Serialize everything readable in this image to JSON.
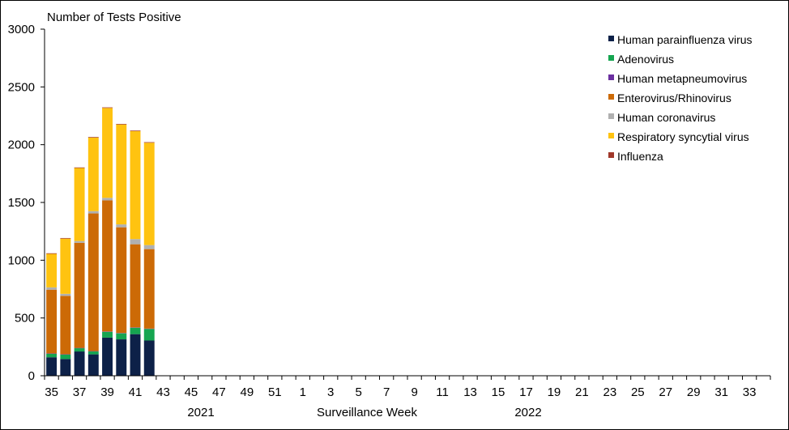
{
  "chart_data": {
    "type": "bar",
    "stacked": true,
    "ylabel": "Number of Tests Positive",
    "xlabel": "Surveillance Week",
    "ylim": [
      0,
      3000
    ],
    "yticks": [
      0,
      500,
      1000,
      1500,
      2000,
      2500,
      3000
    ],
    "grid": false,
    "legend_position": "top-right",
    "year_labels": [
      "2021",
      "2022"
    ],
    "weeks": [
      35,
      36,
      37,
      38,
      39,
      40,
      41,
      42,
      43,
      44,
      45,
      46,
      47,
      48,
      49,
      50,
      51,
      52,
      1,
      2,
      3,
      4,
      5,
      6,
      7,
      8,
      9,
      10,
      11,
      12,
      13,
      14,
      15,
      16,
      17,
      18,
      19,
      20,
      21,
      22,
      23,
      24,
      25,
      26,
      27,
      28,
      29,
      30,
      31,
      32,
      33,
      34
    ],
    "tick_labels": [
      "35",
      "37",
      "39",
      "41",
      "43",
      "45",
      "47",
      "49",
      "51",
      "1",
      "3",
      "5",
      "7",
      "9",
      "11",
      "13",
      "15",
      "17",
      "19",
      "21",
      "23",
      "25",
      "27",
      "29",
      "31",
      "33"
    ],
    "series": [
      {
        "name": "Human parainfluenza virus",
        "color": "#0d2148",
        "values": [
          160,
          145,
          210,
          185,
          330,
          315,
          360,
          305
        ]
      },
      {
        "name": "Adenovirus",
        "color": "#15a550",
        "values": [
          30,
          38,
          28,
          25,
          50,
          52,
          55,
          100
        ]
      },
      {
        "name": "Human metapneumovirus",
        "color": "#6b2fa0",
        "values": [
          3,
          3,
          3,
          3,
          3,
          3,
          3,
          3
        ]
      },
      {
        "name": "Enterovirus/Rhinovirus",
        "color": "#cc6a06",
        "values": [
          552,
          505,
          910,
          1192,
          1135,
          915,
          720,
          688
        ]
      },
      {
        "name": "Human coronavirus",
        "color": "#b0b0b0",
        "values": [
          20,
          18,
          15,
          20,
          22,
          25,
          45,
          35
        ]
      },
      {
        "name": "Respiratory syncytial virus",
        "color": "#ffc310",
        "values": [
          290,
          478,
          632,
          637,
          778,
          865,
          935,
          886
        ]
      },
      {
        "name": "Influenza",
        "color": "#a0372a",
        "values": [
          5,
          5,
          5,
          5,
          5,
          5,
          5,
          5
        ]
      }
    ]
  }
}
